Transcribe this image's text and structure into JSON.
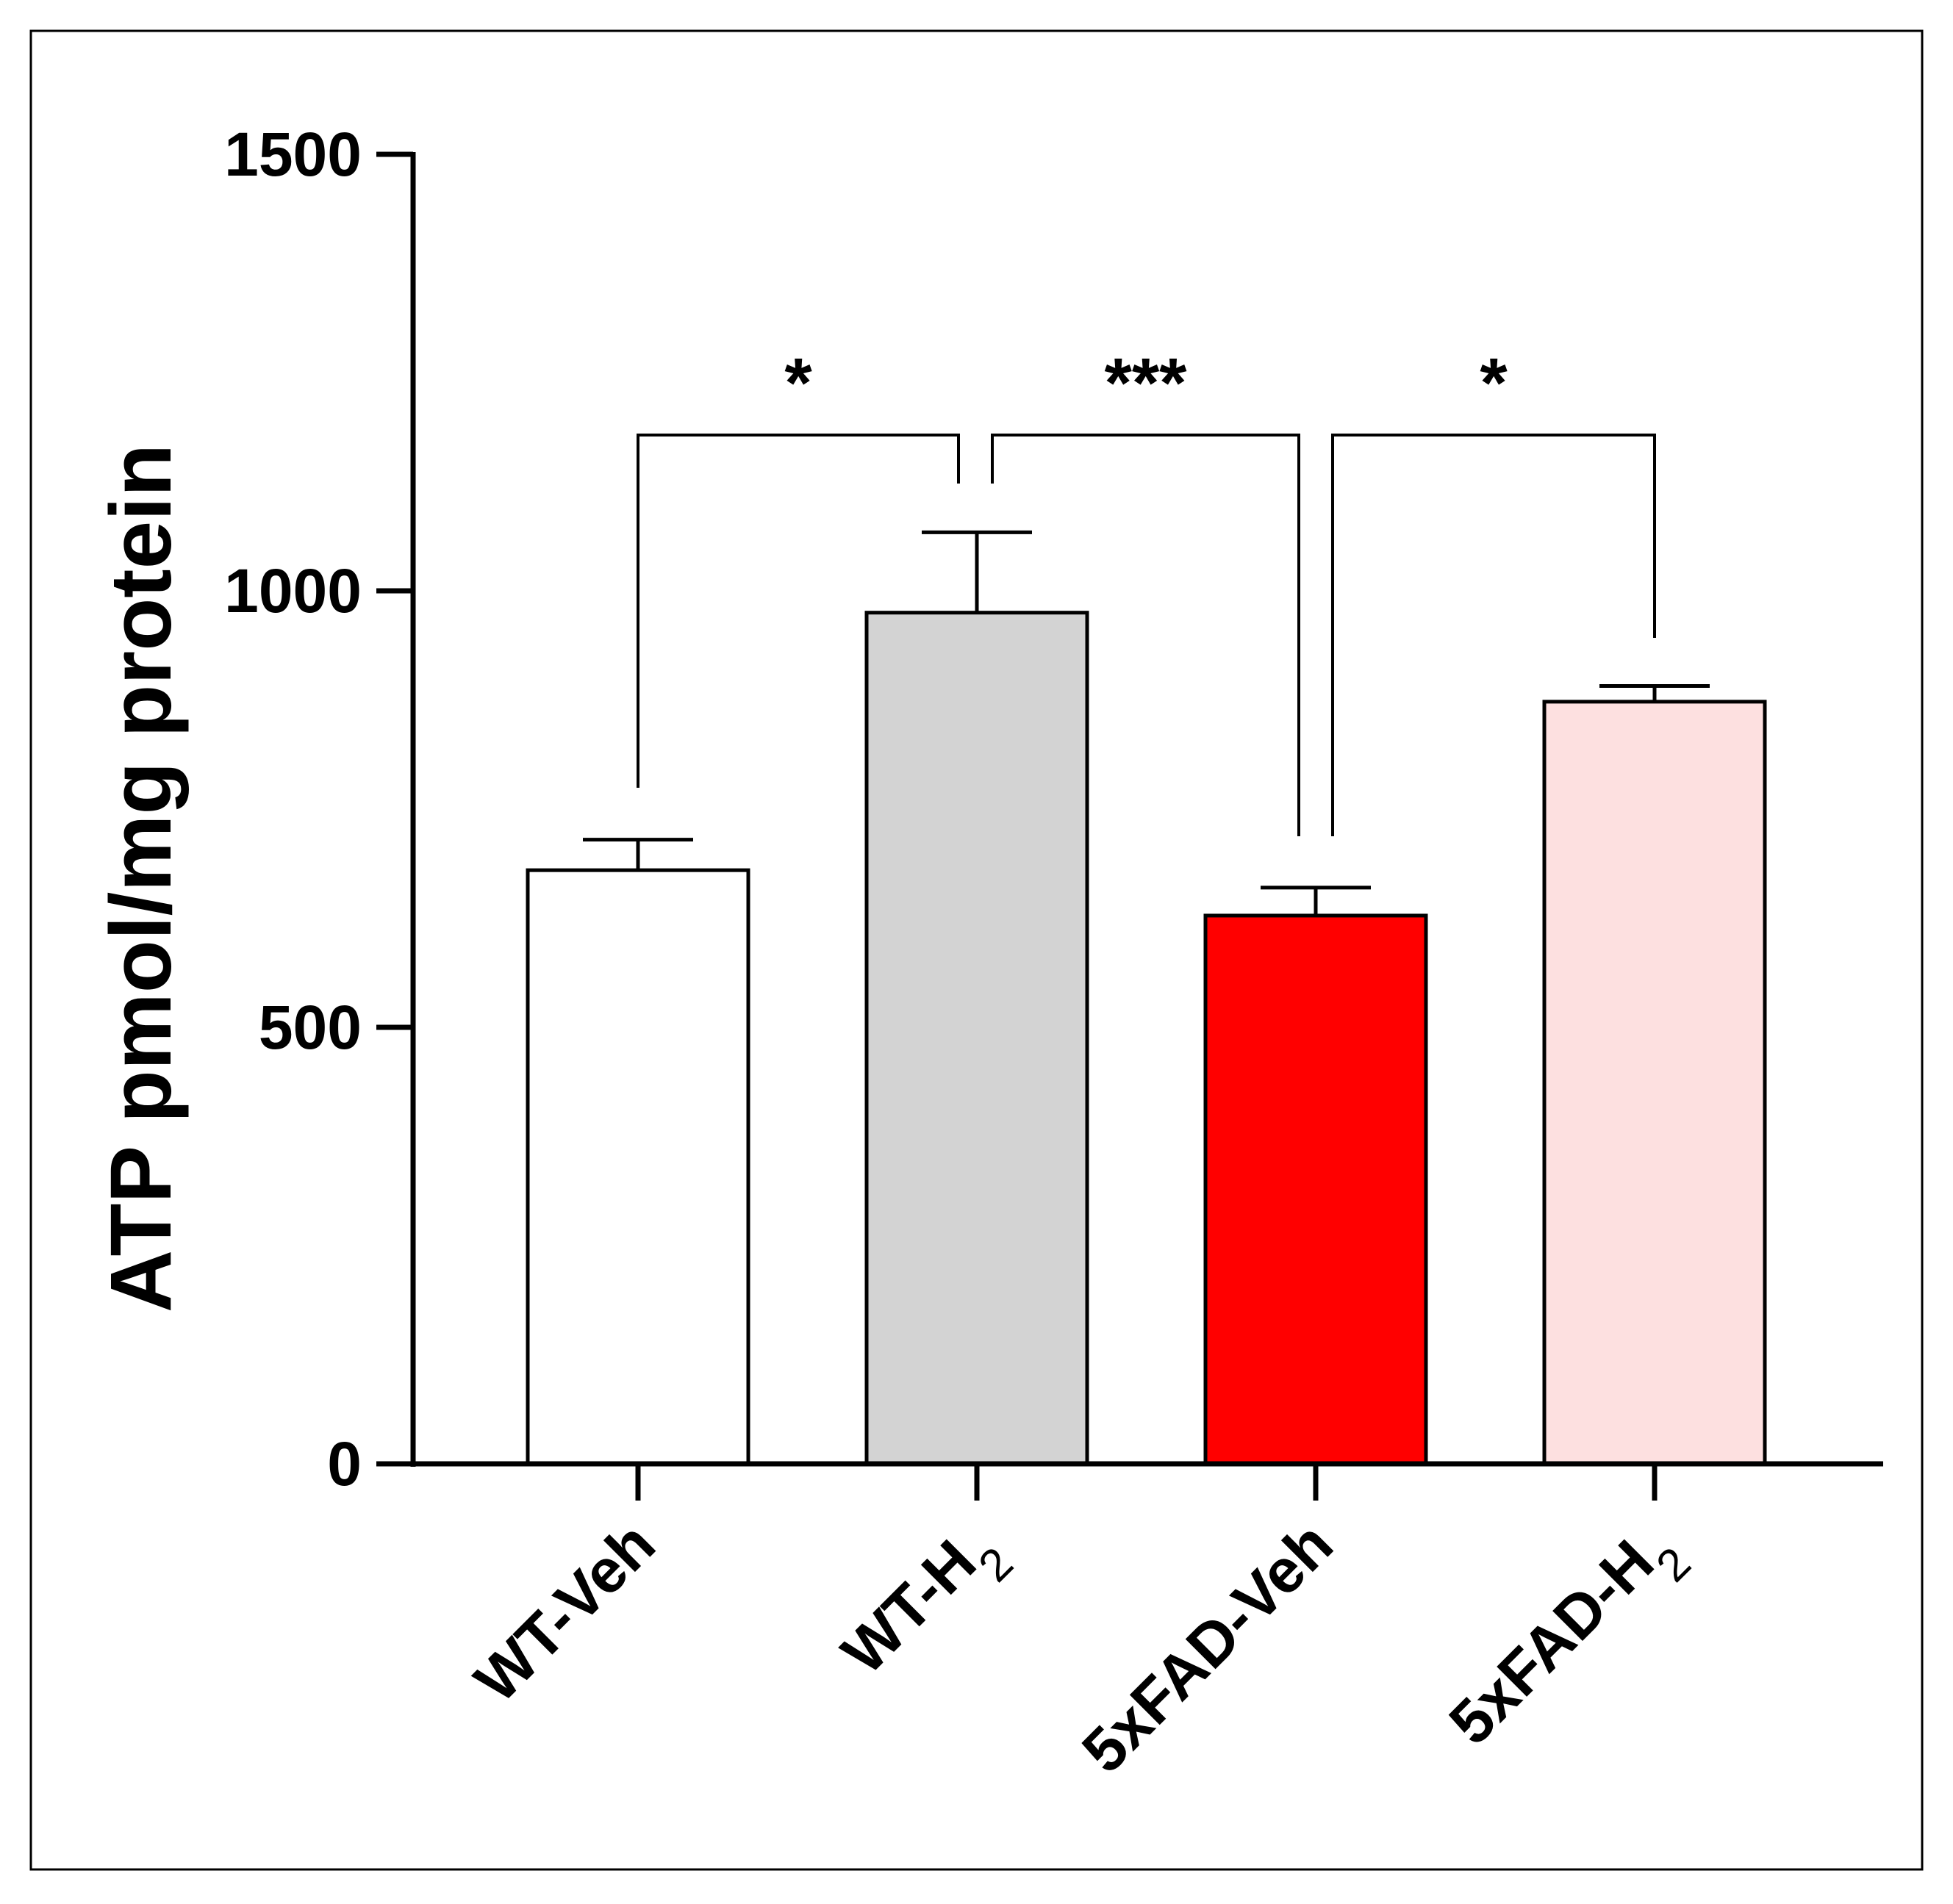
{
  "chart_data": {
    "type": "bar",
    "ylabel": "ATP pmol/mg protein",
    "ylim": [
      0,
      1500
    ],
    "yticks": [
      0,
      500,
      1000,
      1500
    ],
    "categories": [
      {
        "base": "WT-Veh",
        "sub": ""
      },
      {
        "base": "WT-H",
        "sub": "2"
      },
      {
        "base": "5xFAD-Veh",
        "sub": ""
      },
      {
        "base": "5xFAD-H",
        "sub": "2"
      }
    ],
    "values": [
      680,
      975,
      628,
      873
    ],
    "errors": [
      35,
      92,
      32,
      18
    ],
    "colors": [
      "#ffffff",
      "#d3d3d3",
      "#ff0000",
      "#fde0e0"
    ],
    "significance": [
      {
        "from": 0,
        "to": 1,
        "label": "*"
      },
      {
        "from": 1,
        "to": 2,
        "label": "***"
      },
      {
        "from": 2,
        "to": 3,
        "label": "*"
      }
    ],
    "grid": false,
    "frame": true
  }
}
